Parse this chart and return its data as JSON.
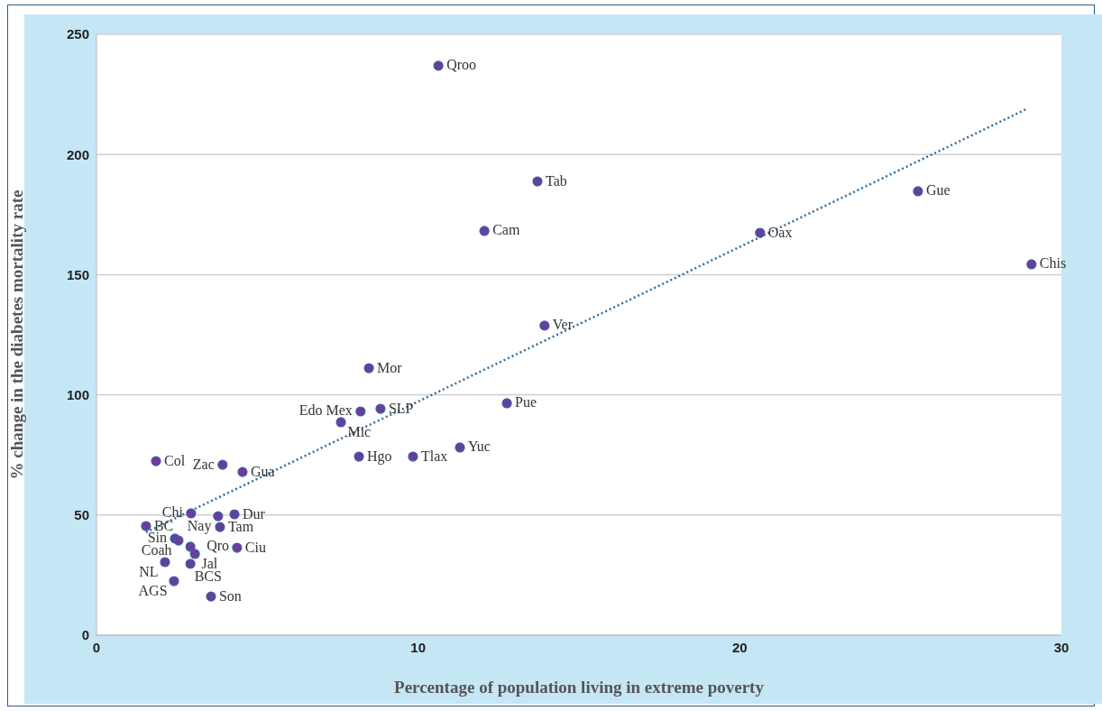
{
  "chart_data": {
    "type": "scatter",
    "xlabel": "Percentage of population living in extreme poverty",
    "ylabel": "% change in the diabetes mortality rate",
    "xlim": [
      0,
      30
    ],
    "xticks": [
      0,
      10,
      20,
      30
    ],
    "ylim": [
      0,
      250
    ],
    "yticks": [
      0,
      50,
      100,
      150,
      200,
      250
    ],
    "grid": "y",
    "marker": "circle",
    "series": [
      {
        "type": "scatter",
        "color": "#6a3d9a",
        "x": [
          10.63,
          13.71,
          12.06,
          25.54,
          20.63,
          29.07,
          13.93,
          8.47,
          12.76,
          8.83,
          8.21,
          7.6,
          8.16,
          9.84,
          11.3,
          1.85,
          3.92,
          4.54,
          2.94,
          3.78,
          4.29,
          1.54,
          3.84,
          2.44,
          2.55,
          2.92,
          4.37,
          3.06,
          2.13,
          2.92,
          2.41,
          3.56
        ],
        "values": [
          236.9,
          188.8,
          168.2,
          184.7,
          167.4,
          154.3,
          128.8,
          111.1,
          96.5,
          94.2,
          93.1,
          88.6,
          74.3,
          74.3,
          78.1,
          72.4,
          70.9,
          67.9,
          50.7,
          49.5,
          50.3,
          45.4,
          45.0,
          40.2,
          39.4,
          36.8,
          36.4,
          33.8,
          30.4,
          29.7,
          22.5,
          16.1
        ],
        "value_labels": [
          "Qroo",
          "Tab",
          "Cam",
          "Gue",
          "Oax",
          "Chis",
          "Ver",
          "Mor",
          "Pue",
          "SLP",
          "Edo Mex",
          "Mic",
          "Hgo",
          "Tlax",
          "Yuc",
          "Col",
          "Zac",
          "Gua",
          "Chi",
          "Nay",
          "Dur",
          "BC",
          "Tam",
          "Sin",
          "Coah",
          "Qro",
          "Ciu",
          "Jal",
          "NL",
          "BCS",
          "AGS",
          "Son"
        ]
      },
      {
        "type": "line",
        "color": "#2e6e9e",
        "line_style": "dotted",
        "marker": "none",
        "x": [
          1.54,
          28.96
        ],
        "values": [
          42.8,
          219.2
        ]
      }
    ]
  }
}
